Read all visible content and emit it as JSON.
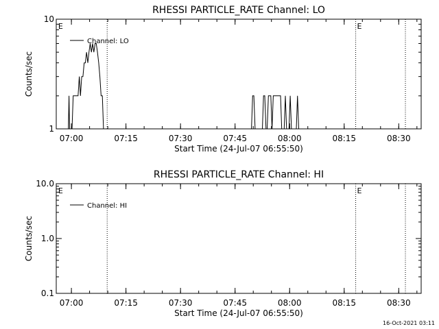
{
  "footer": {
    "timestamp": "16-Oct-2021 03:11"
  },
  "chart_data": [
    {
      "type": "line",
      "title": "RHESSI PARTICLE_RATE Channel: LO",
      "xlabel": "Start Time (24-Jul-07 06:55:50)",
      "ylabel": "Counts/sec",
      "yscale": "log",
      "xlim": [
        "06:55:50",
        "08:36:10"
      ],
      "ylim": [
        1,
        10
      ],
      "x_ticks": [
        "07:00",
        "07:15",
        "07:30",
        "07:45",
        "08:00",
        "08:15",
        "08:30"
      ],
      "y_ticks": [
        "1",
        "10"
      ],
      "legend": {
        "position": "top-left",
        "entries": [
          "Channel: LO"
        ]
      },
      "markers": [
        {
          "time": "06:56:00",
          "label": "E",
          "dotted": false
        },
        {
          "time": "07:09:50",
          "label": "",
          "dotted": true
        },
        {
          "time": "08:18:10",
          "label": "E",
          "dotted": true
        },
        {
          "time": "08:31:50",
          "label": "",
          "dotted": true
        }
      ],
      "series": [
        {
          "name": "Channel: LO",
          "x": [
            "06:59:10",
            "06:59:20",
            "06:59:30",
            "06:59:40",
            "06:59:50",
            "07:00:10",
            "07:00:30",
            "07:00:50",
            "07:01:10",
            "07:01:30",
            "07:01:50",
            "07:02:10",
            "07:02:30",
            "07:02:50",
            "07:03:10",
            "07:03:30",
            "07:03:50",
            "07:04:10",
            "07:04:30",
            "07:04:50",
            "07:05:10",
            "07:05:30",
            "07:05:50",
            "07:06:10",
            "07:06:30",
            "07:06:50",
            "07:07:10",
            "07:07:30",
            "07:07:50",
            "07:08:10",
            "07:08:30",
            "07:08:50",
            "07:09:10",
            "07:09:30",
            "07:09:50",
            "07:49:10",
            "07:49:30",
            "07:49:50",
            "07:50:10",
            "07:50:30",
            "07:51:10",
            "07:52:30",
            "07:52:50",
            "07:53:10",
            "07:53:30",
            "07:53:50",
            "07:54:10",
            "07:54:30",
            "07:54:50",
            "07:55:10",
            "07:55:30",
            "07:55:50",
            "07:56:10",
            "07:56:30",
            "07:56:50",
            "07:57:10",
            "07:57:30",
            "07:57:50",
            "07:58:10",
            "07:58:30",
            "07:58:50",
            "07:59:10",
            "07:59:30",
            "07:59:50",
            "08:00:10",
            "08:00:30",
            "08:00:50",
            "08:01:10",
            "08:01:30",
            "08:01:50",
            "08:02:10",
            "08:02:30",
            "08:02:50"
          ],
          "y": [
            1,
            2,
            1,
            1,
            1,
            1,
            2,
            2,
            2,
            2,
            2,
            3,
            2,
            3,
            3,
            4,
            4,
            5,
            4,
            5,
            6,
            5,
            6,
            5,
            6,
            6,
            5,
            4,
            3,
            2,
            2,
            1,
            1,
            1,
            1,
            1,
            1,
            2,
            2,
            1,
            1,
            1,
            2,
            2,
            1,
            1,
            2,
            2,
            2,
            1,
            2,
            2,
            2,
            2,
            2,
            2,
            2,
            1,
            1,
            1,
            2,
            1,
            1,
            1,
            2,
            1,
            1,
            1,
            1,
            1,
            2,
            1,
            1
          ]
        }
      ]
    },
    {
      "type": "line",
      "title": "RHESSI PARTICLE_RATE Channel: HI",
      "xlabel": "Start Time (24-Jul-07 06:55:50)",
      "ylabel": "Counts/sec",
      "yscale": "log",
      "xlim": [
        "06:55:50",
        "08:36:10"
      ],
      "ylim": [
        0.1,
        10
      ],
      "x_ticks": [
        "07:00",
        "07:15",
        "07:30",
        "07:45",
        "08:00",
        "08:15",
        "08:30"
      ],
      "y_ticks": [
        "0.1",
        "1.0",
        "10.0"
      ],
      "legend": {
        "position": "top-left",
        "entries": [
          "Channel: HI"
        ]
      },
      "markers": [
        {
          "time": "06:56:00",
          "label": "E",
          "dotted": false
        },
        {
          "time": "07:09:50",
          "label": "",
          "dotted": true
        },
        {
          "time": "08:18:10",
          "label": "E",
          "dotted": true
        },
        {
          "time": "08:31:50",
          "label": "",
          "dotted": true
        }
      ],
      "series": [
        {
          "name": "Channel: HI",
          "x": [],
          "y": []
        }
      ]
    }
  ]
}
